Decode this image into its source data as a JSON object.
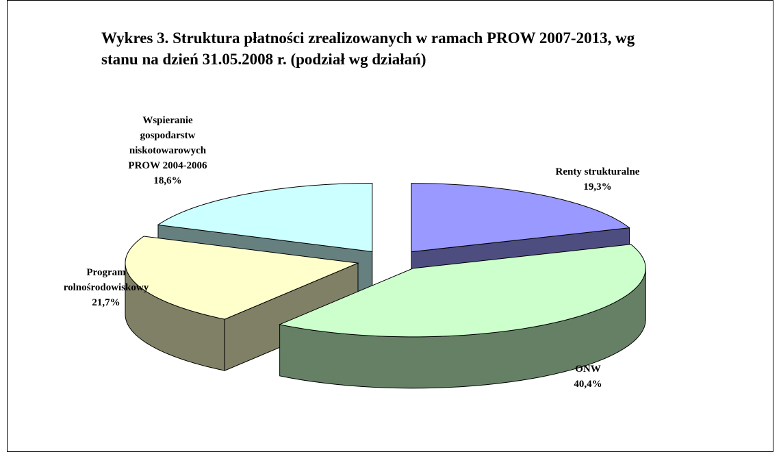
{
  "chart_data": {
    "type": "pie3d",
    "title": "Wykres 3. Struktura płatności zrealizowanych w ramach PROW 2007-2013, wg stanu na dzień 31.05.2008 r. (podział wg działań)",
    "categories": [
      "Renty strukturalne",
      "ONW",
      "Program rolnośrodowiskowy",
      "Wspieranie gospodarstw niskotowarowych PROW 2004-2006"
    ],
    "values": [
      19.3,
      40.4,
      21.7,
      18.6
    ],
    "value_labels": [
      "19,3%",
      "40,4%",
      "21,7%",
      "18,6%"
    ],
    "colors": [
      "#9999ff",
      "#ccffcc",
      "#ffffcc",
      "#ccffff"
    ]
  }
}
